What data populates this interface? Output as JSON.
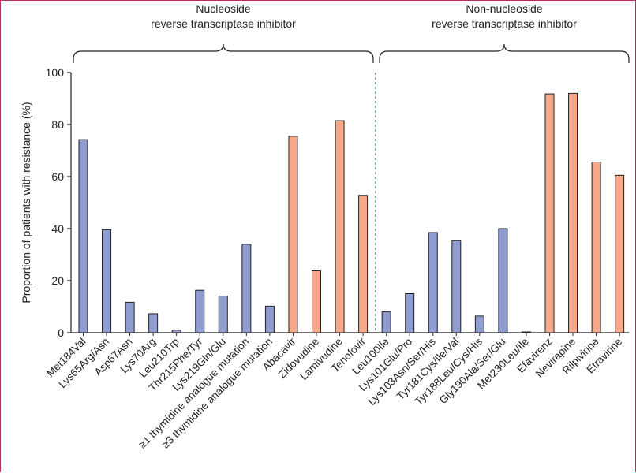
{
  "chart_data": {
    "type": "bar",
    "ylabel": "Proportion of patients with resistance (%)",
    "ylim": [
      0,
      100
    ],
    "yticks": [
      0,
      20,
      40,
      60,
      80,
      100
    ],
    "grid": false,
    "groups": [
      {
        "label_line1": "Nucleoside",
        "label_line2": "reverse transcriptase inhibitor"
      },
      {
        "label_line1": "Non-nucleoside",
        "label_line2": "reverse transcriptase inhibitor"
      }
    ],
    "colors": {
      "mutation": "#8f9ccf",
      "drug": "#f6a98a",
      "divider": "#2b6f7f"
    },
    "bars": [
      {
        "label": "Met184Val",
        "value": 74.2,
        "kind": "mutation",
        "group": 0
      },
      {
        "label": "Lys65Arg/Asn",
        "value": 39.6,
        "kind": "mutation",
        "group": 0
      },
      {
        "label": "Asp67Asn",
        "value": 11.7,
        "kind": "mutation",
        "group": 0
      },
      {
        "label": "Lys70Arg",
        "value": 7.3,
        "kind": "mutation",
        "group": 0
      },
      {
        "label": "Leu210Trp",
        "value": 1.0,
        "kind": "mutation",
        "group": 0
      },
      {
        "label": "Thr215Phe/Tyr",
        "value": 16.3,
        "kind": "mutation",
        "group": 0
      },
      {
        "label": "Lys219Gln/Glu",
        "value": 14.1,
        "kind": "mutation",
        "group": 0
      },
      {
        "label": "≥1 thymidine analogue mutation",
        "value": 34.0,
        "kind": "mutation",
        "group": 0
      },
      {
        "label": "≥3 thymidine analogue mutation",
        "value": 10.2,
        "kind": "mutation",
        "group": 0
      },
      {
        "label": "Abacavir",
        "value": 75.5,
        "kind": "drug",
        "group": 0
      },
      {
        "label": "Zidovudine",
        "value": 23.8,
        "kind": "drug",
        "group": 0
      },
      {
        "label": "Lamivudine",
        "value": 81.5,
        "kind": "drug",
        "group": 0
      },
      {
        "label": "Tenofovir",
        "value": 52.8,
        "kind": "drug",
        "group": 0
      },
      {
        "label": "Leu100Ile",
        "value": 8.0,
        "kind": "mutation",
        "group": 1
      },
      {
        "label": "Lys101Glu/Pro",
        "value": 15.0,
        "kind": "mutation",
        "group": 1
      },
      {
        "label": "Lys103Asn/Ser/His",
        "value": 38.5,
        "kind": "mutation",
        "group": 1
      },
      {
        "label": "Tyr181Cys/Ile/Val",
        "value": 35.4,
        "kind": "mutation",
        "group": 1
      },
      {
        "label": "Tyr188Leu/Cys/His",
        "value": 6.4,
        "kind": "mutation",
        "group": 1
      },
      {
        "label": "Gly190Ala/Ser/Glu",
        "value": 40.0,
        "kind": "mutation",
        "group": 1
      },
      {
        "label": "Met230Leu/Ile",
        "value": 0.3,
        "kind": "mutation",
        "group": 1
      },
      {
        "label": "Efavirenz",
        "value": 91.8,
        "kind": "drug",
        "group": 1
      },
      {
        "label": "Nevirapine",
        "value": 92.0,
        "kind": "drug",
        "group": 1
      },
      {
        "label": "Rilpivirine",
        "value": 65.6,
        "kind": "drug",
        "group": 1
      },
      {
        "label": "Etravirine",
        "value": 60.5,
        "kind": "drug",
        "group": 1
      }
    ]
  }
}
